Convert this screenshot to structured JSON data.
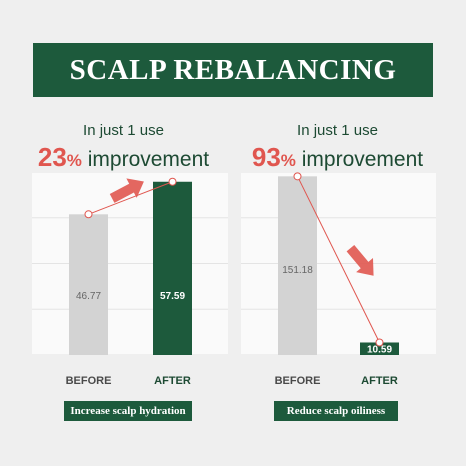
{
  "header": {
    "title": "SCALP REBALANCING"
  },
  "panels": [
    {
      "line1": "In just 1 use",
      "pct": "23",
      "pct_sign": "%",
      "improvement": " improvement",
      "caption": "Increase scalp hydration"
    },
    {
      "line1": "In just 1 use",
      "pct": "93",
      "pct_sign": "%",
      "improvement": " improvement",
      "caption": "Reduce scalp oiliness"
    }
  ],
  "colors": {
    "brand_green": "#1d5a3c",
    "accent_red": "#e0564f",
    "bar_before": "#d3d3d3",
    "bar_after": "#1d5a3c",
    "background": "#efefef",
    "plot_bg": "#fafafa"
  },
  "chart_data": [
    {
      "type": "bar",
      "categories": [
        "BEFORE",
        "AFTER"
      ],
      "values": [
        46.77,
        57.59
      ],
      "value_labels": [
        "46.77",
        "57.59"
      ],
      "trend": "up",
      "ylim": [
        0,
        60.5
      ],
      "grid": true
    },
    {
      "type": "bar",
      "categories": [
        "BEFORE",
        "AFTER"
      ],
      "values": [
        151.18,
        10.59
      ],
      "value_labels": [
        "151.18",
        "10.59"
      ],
      "trend": "down",
      "ylim": [
        0,
        154
      ],
      "grid": true
    }
  ]
}
